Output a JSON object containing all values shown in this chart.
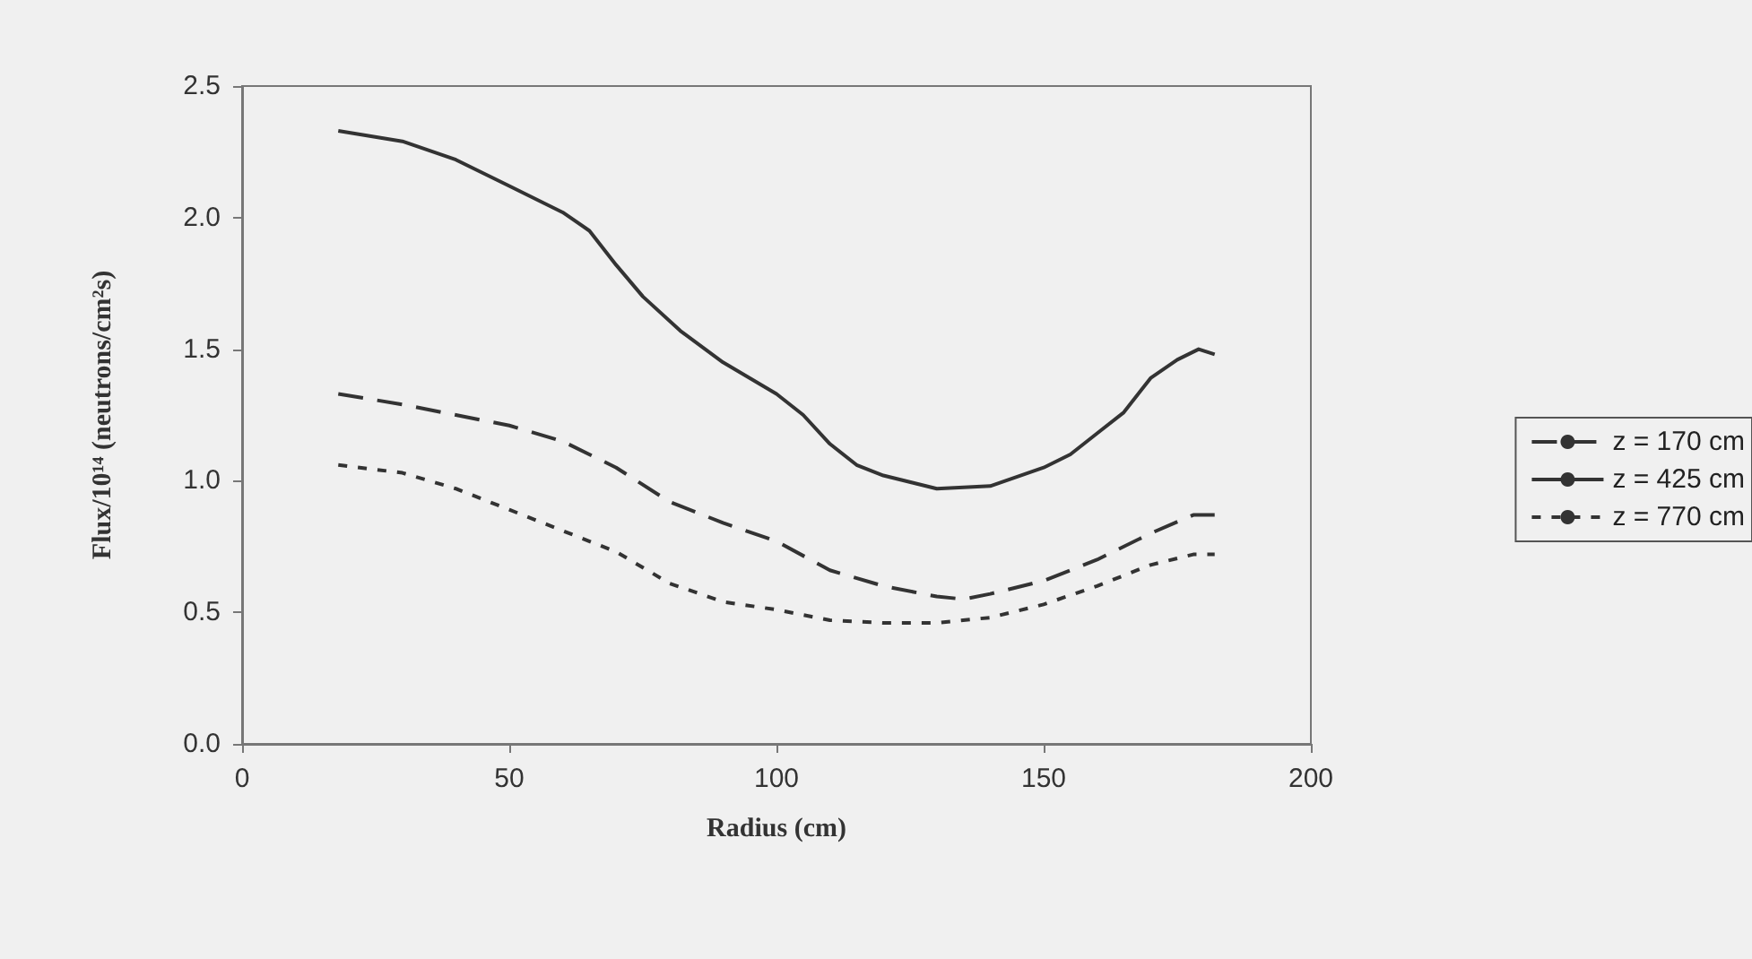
{
  "chart_data": {
    "type": "line",
    "xlabel": "Radius (cm)",
    "ylabel": "Flux/10¹⁴ (neutrons/cm²s)",
    "xlim": [
      0,
      200
    ],
    "xticks": [
      0,
      50,
      100,
      150,
      200
    ],
    "ylim": [
      0,
      2.5
    ],
    "yticks": [
      {
        "value": 0,
        "label": "0.0"
      },
      {
        "value": 0.5,
        "label": "0.5"
      },
      {
        "value": 1,
        "label": "1.0"
      },
      {
        "value": 1.5,
        "label": "1.5"
      },
      {
        "value": 2,
        "label": "2.0"
      },
      {
        "value": 2.5,
        "label": "2.5"
      }
    ],
    "grid": false,
    "legend": "right",
    "marker": "none",
    "series": [
      {
        "name": "z = 170 cm",
        "color": "#333333",
        "line_style": "dashed",
        "x": [
          18,
          30,
          40,
          50,
          60,
          70,
          80,
          90,
          100,
          110,
          120,
          130,
          135,
          140,
          150,
          160,
          170,
          178,
          182
        ],
        "values": [
          1.33,
          1.29,
          1.25,
          1.21,
          1.15,
          1.05,
          0.92,
          0.84,
          0.77,
          0.66,
          0.6,
          0.56,
          0.55,
          0.57,
          0.62,
          0.7,
          0.8,
          0.87,
          0.87
        ]
      },
      {
        "name": "z = 425 cm",
        "color": "#333333",
        "line_style": "solid",
        "x": [
          18,
          30,
          40,
          50,
          60,
          65,
          70,
          75,
          82,
          90,
          100,
          105,
          110,
          115,
          120,
          130,
          140,
          150,
          155,
          160,
          165,
          170,
          175,
          179,
          182
        ],
        "values": [
          2.33,
          2.29,
          2.22,
          2.12,
          2.02,
          1.95,
          1.82,
          1.7,
          1.57,
          1.45,
          1.33,
          1.25,
          1.14,
          1.06,
          1.02,
          0.97,
          0.98,
          1.05,
          1.1,
          1.18,
          1.26,
          1.39,
          1.46,
          1.5,
          1.48
        ]
      },
      {
        "name": "z = 770 cm",
        "color": "#333333",
        "line_style": "dotted",
        "x": [
          18,
          30,
          40,
          50,
          60,
          70,
          80,
          90,
          100,
          110,
          120,
          130,
          140,
          150,
          160,
          170,
          178,
          182
        ],
        "values": [
          1.06,
          1.03,
          0.97,
          0.89,
          0.81,
          0.73,
          0.61,
          0.54,
          0.51,
          0.47,
          0.46,
          0.46,
          0.48,
          0.53,
          0.6,
          0.68,
          0.72,
          0.72
        ]
      }
    ]
  }
}
